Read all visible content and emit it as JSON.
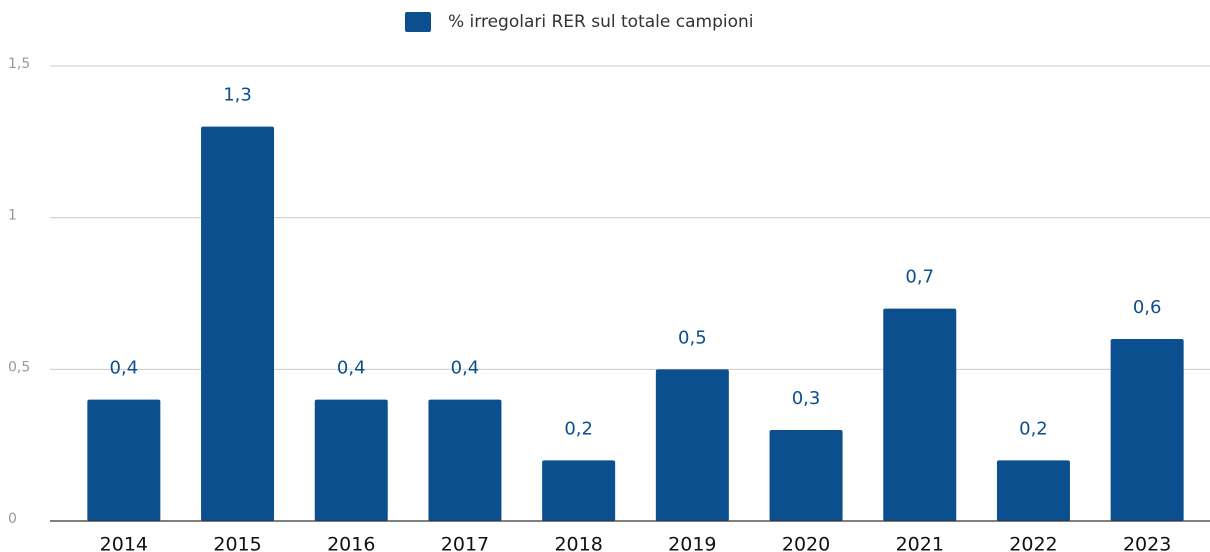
{
  "chart_data": {
    "type": "bar",
    "legend": "% irregolari RER sul totale campioni",
    "categories": [
      "2014",
      "2015",
      "2016",
      "2017",
      "2018",
      "2019",
      "2020",
      "2021",
      "2022",
      "2023"
    ],
    "values": [
      0.4,
      1.3,
      0.4,
      0.4,
      0.2,
      0.5,
      0.3,
      0.7,
      0.2,
      0.6
    ],
    "value_labels": [
      "0,4",
      "1,3",
      "0,4",
      "0,4",
      "0,2",
      "0,5",
      "0,3",
      "0,7",
      "0,2",
      "0,6"
    ],
    "color": "#0b4f8f",
    "ylim": [
      0,
      1.5
    ],
    "yticks": [
      0,
      {
        "value": 0.5,
        "label": "0,5"
      },
      1,
      {
        "value": 1.5,
        "label": "1,5"
      }
    ],
    "grid": true
  }
}
